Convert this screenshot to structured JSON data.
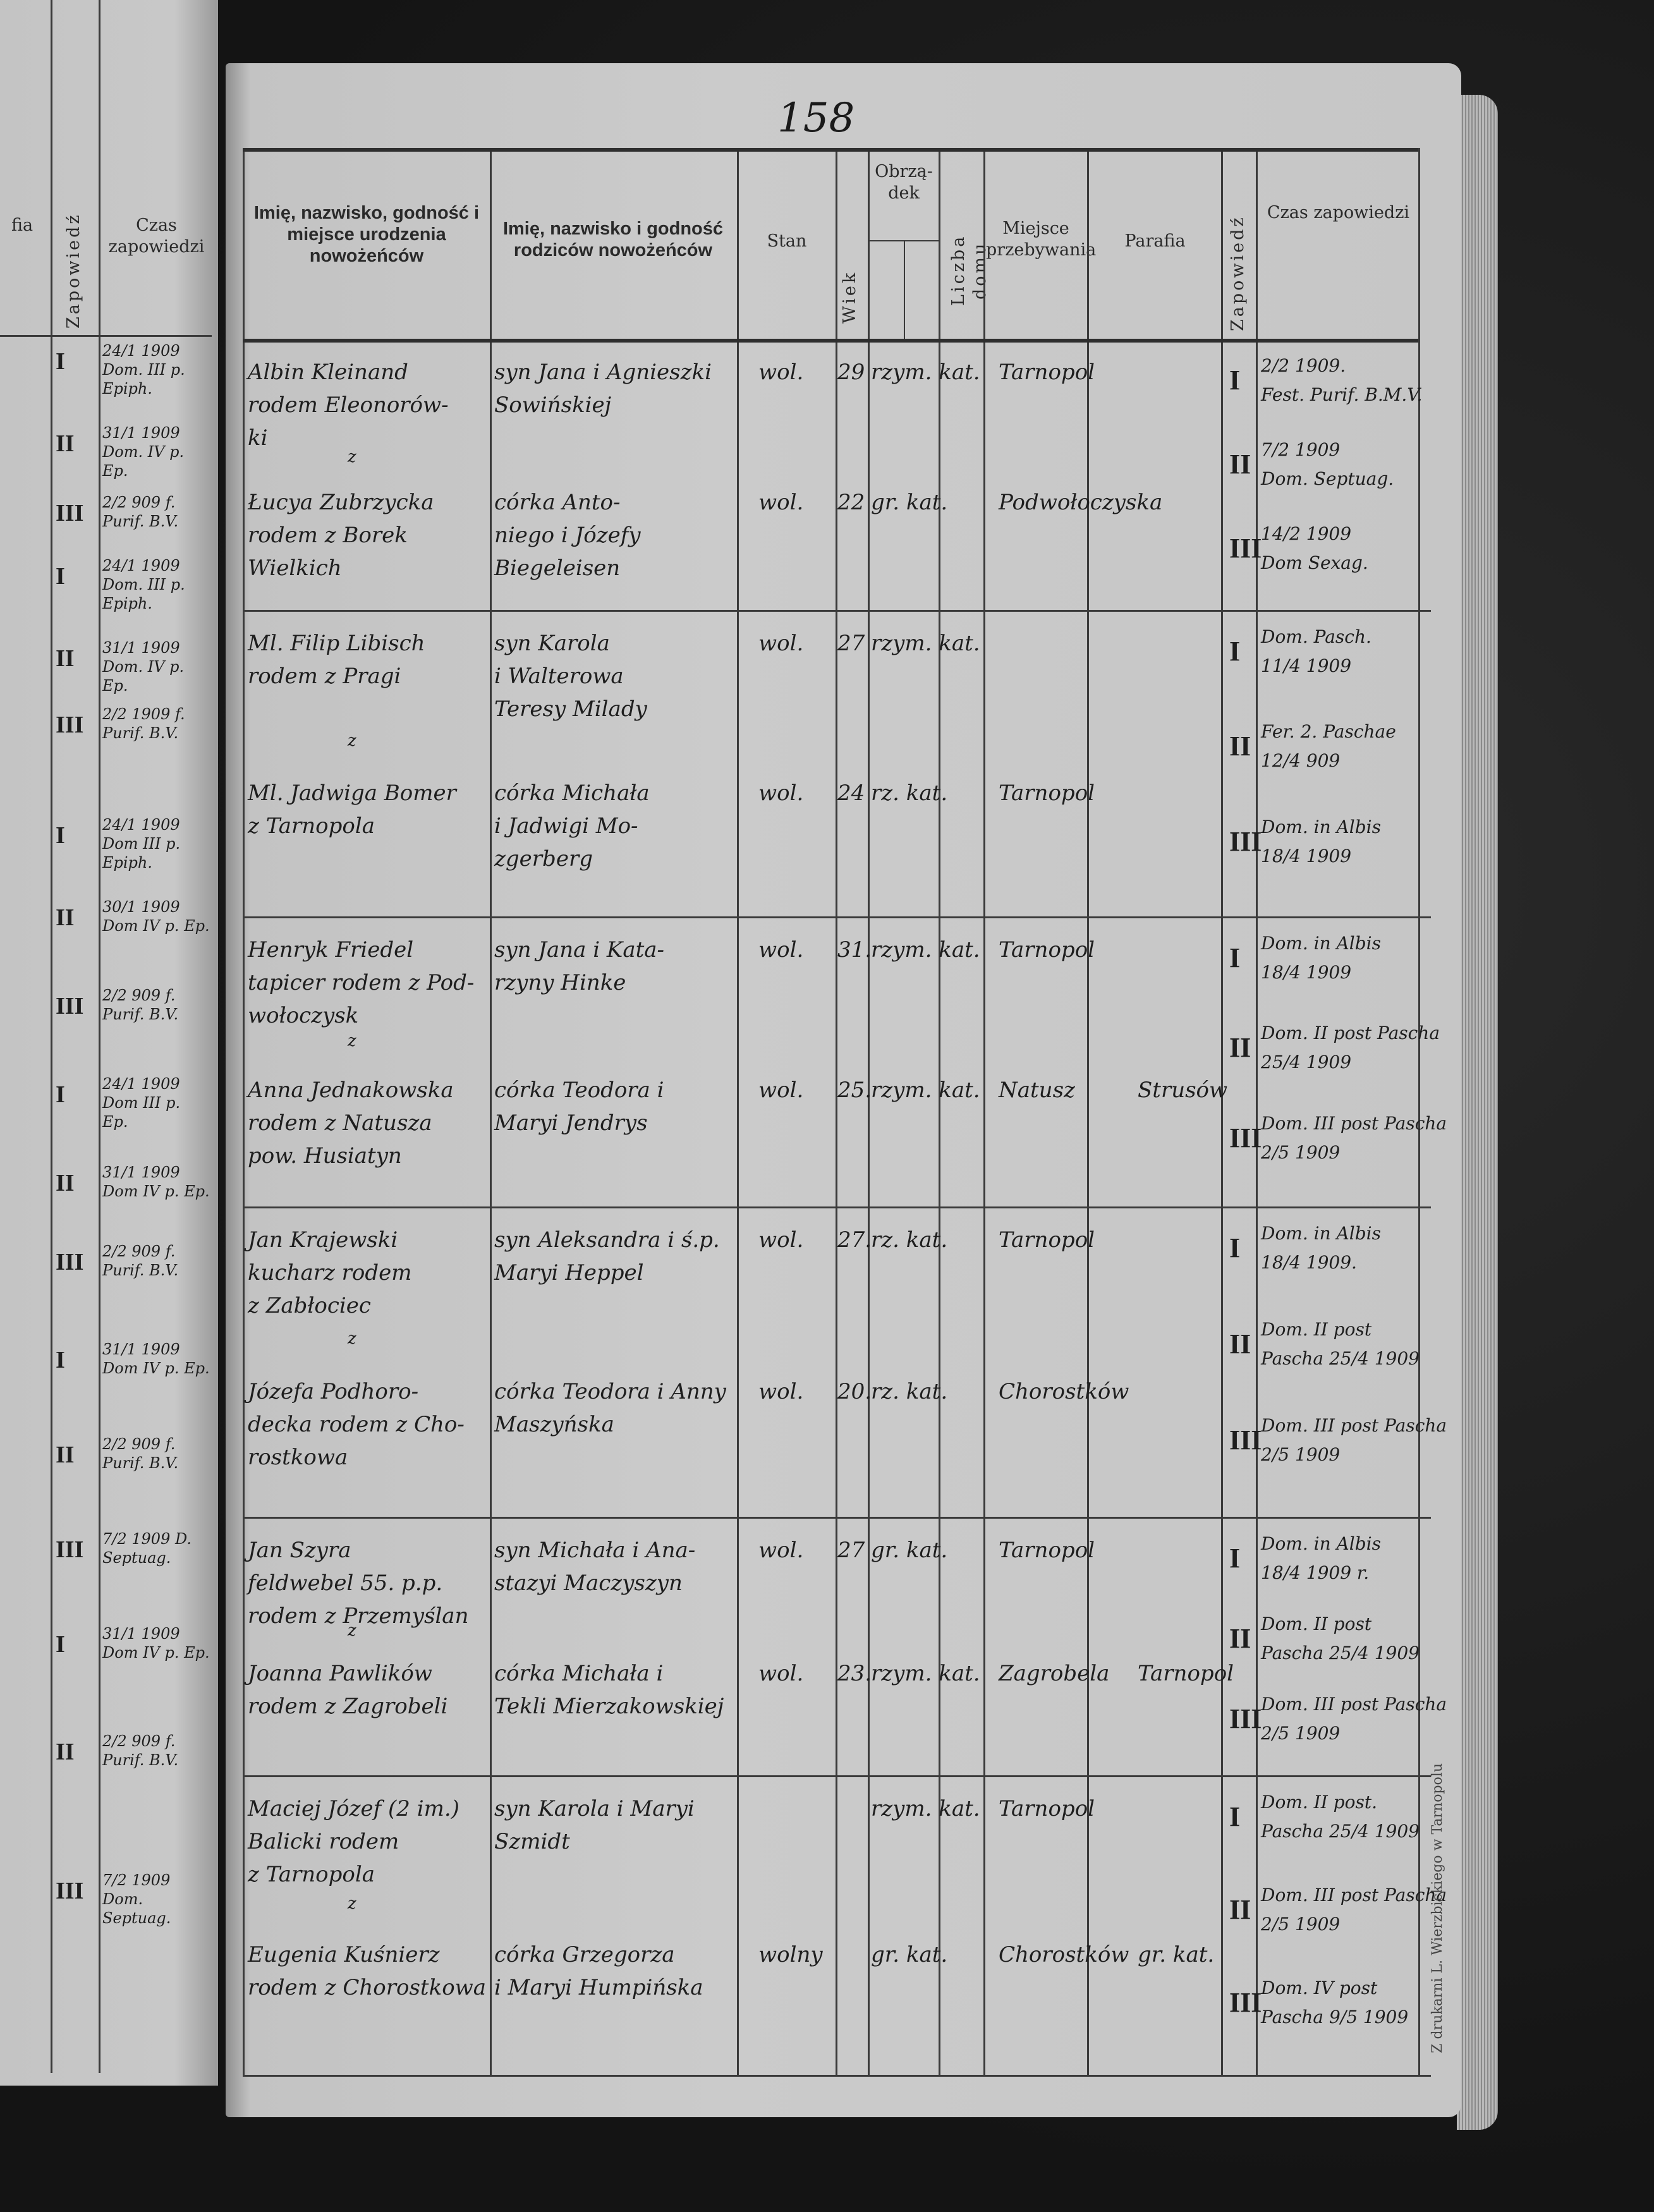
{
  "page_number": "158",
  "imprint": "Z drukarni L. Wierzbickiego w Tarnopolu",
  "left_page": {
    "headers": {
      "parafia_fragment": "fia",
      "zapowiedz": "Zapowiedź",
      "czas": "Czas zapowiedzi"
    },
    "banns": [
      {
        "num": "I",
        "text": "24/1 1909 Dom. III p. Epiph."
      },
      {
        "num": "II",
        "text": "31/1 1909 Dom. IV p. Ep."
      },
      {
        "num": "III",
        "text": "2/2 909 f. Purif. B.V."
      },
      {
        "num": "I",
        "text": "24/1 1909 Dom. III p. Epiph."
      },
      {
        "num": "II",
        "text": "31/1 1909 Dom. IV p. Ep."
      },
      {
        "num": "III",
        "text": "2/2 1909 f. Purif. B.V."
      },
      {
        "num": "I",
        "text": "24/1 1909 Dom III p. Epiph."
      },
      {
        "num": "II",
        "text": "30/1 1909 Dom IV p. Ep."
      },
      {
        "num": "III",
        "text": "2/2 909 f. Purif. B.V."
      },
      {
        "num": "I",
        "text": "24/1 1909 Dom III p. Ep."
      },
      {
        "num": "II",
        "text": "31/1 1909 Dom IV p. Ep."
      },
      {
        "num": "III",
        "text": "2/2 909 f. Purif. B.V."
      },
      {
        "num": "I",
        "text": "31/1 1909 Dom IV p. Ep."
      },
      {
        "num": "II",
        "text": "2/2 909 f. Purif. B.V."
      },
      {
        "num": "III",
        "text": "7/2 1909 D. Septuag."
      },
      {
        "num": "I",
        "text": "31/1 1909 Dom IV p. Ep."
      },
      {
        "num": "II",
        "text": "2/2 909 f. Purif. B.V."
      },
      {
        "num": "III",
        "text": "7/2 1909 Dom. Septuag."
      }
    ]
  },
  "headers": {
    "names": "Imię, nazwisko, godność i miejsce urodzenia nowożeńców",
    "parents": "Imię, nazwisko i godność rodziców nowożeńców",
    "stan": "Stan",
    "wiek": "Wiek",
    "obrzadek": "Obrzą-dek",
    "liczba_domu": "Liczba domu",
    "miejsce": "Miejsce przebywania",
    "parafia": "Parafia",
    "zapowiedz": "Zapowiedź",
    "czas": "Czas zapowiedzi"
  },
  "conjunction": "z",
  "records": [
    {
      "groom": {
        "name": [
          "Albin Kleinand",
          "rodem Eleonorów-",
          "ki"
        ],
        "parents": [
          "syn Jana i Agnieszki",
          "Sowińskiej"
        ],
        "stan": "wol.",
        "wiek": "29",
        "obrzadek": "rzym. kat.",
        "miejsce": "Tarnopol",
        "parafia": ""
      },
      "bride": {
        "name": [
          "Łucya Zubrzycka",
          "rodem z Borek",
          "Wielkich"
        ],
        "parents": [
          "córka Anto-",
          "niego i Józefy",
          "Biegeleisen"
        ],
        "stan": "wol.",
        "wiek": "22",
        "obrzadek": "gr. kat.",
        "miejsce": "Podwołoczyska",
        "parafia": ""
      },
      "banns": [
        {
          "num": "I",
          "text": [
            "2/2 1909.",
            "Fest. Purif. B.M.V."
          ]
        },
        {
          "num": "II",
          "text": [
            "7/2 1909",
            "Dom. Septuag."
          ]
        },
        {
          "num": "III",
          "text": [
            "14/2 1909",
            "Dom Sexag."
          ]
        }
      ]
    },
    {
      "groom": {
        "name": [
          "Ml. Filip Libisch",
          "rodem z Pragi"
        ],
        "parents": [
          "syn Karola",
          "i Walterowa",
          "Teresy Milady"
        ],
        "stan": "wol.",
        "wiek": "27",
        "obrzadek": "rzym. kat.",
        "miejsce": "",
        "parafia": ""
      },
      "bride": {
        "name": [
          "Ml. Jadwiga Bomer",
          "z Tarnopola"
        ],
        "parents": [
          "córka Michała",
          "i Jadwigi Mo-",
          "zgerberg"
        ],
        "stan": "wol.",
        "wiek": "24",
        "obrzadek": "rz. kat.",
        "miejsce": "Tarnopol",
        "parafia": ""
      },
      "banns": [
        {
          "num": "I",
          "text": [
            "Dom. Pasch.",
            "11/4 1909"
          ]
        },
        {
          "num": "II",
          "text": [
            "Fer. 2. Paschae",
            "12/4 909"
          ]
        },
        {
          "num": "III",
          "text": [
            "Dom. in Albis",
            "18/4 1909"
          ]
        }
      ]
    },
    {
      "groom": {
        "name": [
          "Henryk Friedel",
          "tapicer rodem z Pod-",
          "wołoczysk"
        ],
        "parents": [
          "syn Jana i Kata-",
          "rzyny Hinke"
        ],
        "stan": "wol.",
        "wiek": "31.",
        "obrzadek": "rzym. kat.",
        "miejsce": "Tarnopol",
        "parafia": ""
      },
      "bride": {
        "name": [
          "Anna Jednakowska",
          "rodem z Natusza",
          "pow. Husiatyn"
        ],
        "parents": [
          "córka Teodora i",
          "Maryi Jendrys"
        ],
        "stan": "wol.",
        "wiek": "25.",
        "obrzadek": "rzym. kat.",
        "miejsce": "Natusz",
        "parafia": "Strusów"
      },
      "banns": [
        {
          "num": "I",
          "text": [
            "Dom. in Albis",
            "18/4 1909"
          ]
        },
        {
          "num": "II",
          "text": [
            "Dom. II post Pascha",
            "25/4 1909"
          ]
        },
        {
          "num": "III",
          "text": [
            "Dom. III post Pascha",
            "2/5 1909"
          ]
        }
      ]
    },
    {
      "groom": {
        "name": [
          "Jan Krajewski",
          "kucharz rodem",
          "z Zabłociec"
        ],
        "parents": [
          "syn Aleksandra i ś.p.",
          "Maryi Heppel"
        ],
        "stan": "wol.",
        "wiek": "27.",
        "obrzadek": "rz. kat.",
        "miejsce": "Tarnopol",
        "parafia": ""
      },
      "bride": {
        "name": [
          "Józefa Podhoro-",
          "decka rodem z Cho-",
          "rostkowa"
        ],
        "parents": [
          "córka Teodora i Anny",
          "Maszyńska"
        ],
        "stan": "wol.",
        "wiek": "20.",
        "obrzadek": "rz. kat.",
        "miejsce": "Chorostków",
        "parafia": ""
      },
      "banns": [
        {
          "num": "I",
          "text": [
            "Dom. in Albis",
            "18/4 1909."
          ]
        },
        {
          "num": "II",
          "text": [
            "Dom. II post",
            "Pascha 25/4 1909"
          ]
        },
        {
          "num": "III",
          "text": [
            "Dom. III post Pascha",
            "2/5 1909"
          ]
        }
      ]
    },
    {
      "groom": {
        "name": [
          "Jan Szyra",
          "feldwebel 55. p.p.",
          "rodem z Przemyślan"
        ],
        "parents": [
          "syn Michała i Ana-",
          "stazyi Maczyszyn"
        ],
        "stan": "wol.",
        "wiek": "27",
        "obrzadek": "gr. kat.",
        "miejsce": "Tarnopol",
        "parafia": ""
      },
      "bride": {
        "name": [
          "Joanna Pawlików",
          "rodem z Zagrobeli"
        ],
        "parents": [
          "córka Michała i",
          "Tekli Mierzakowskiej"
        ],
        "stan": "wol.",
        "wiek": "23.",
        "obrzadek": "rzym. kat.",
        "miejsce": "Zagrobela",
        "parafia": "Tarnopol"
      },
      "banns": [
        {
          "num": "I",
          "text": [
            "Dom. in Albis",
            "18/4 1909 r."
          ]
        },
        {
          "num": "II",
          "text": [
            "Dom. II post",
            "Pascha 25/4 1909"
          ]
        },
        {
          "num": "III",
          "text": [
            "Dom. III post Pascha",
            "2/5 1909"
          ]
        }
      ]
    },
    {
      "groom": {
        "name": [
          "Maciej Józef (2 im.)",
          "Balicki rodem",
          "z Tarnopola"
        ],
        "parents": [
          "syn Karola i Maryi",
          "Szmidt"
        ],
        "stan": "",
        "wiek": "",
        "obrzadek": "rzym. kat.",
        "miejsce": "Tarnopol",
        "parafia": ""
      },
      "bride": {
        "name": [
          "Eugenia Kuśnierz",
          "rodem z Chorostkowa"
        ],
        "parents": [
          "córka Grzegorza",
          "i Maryi Humpińska"
        ],
        "stan": "wolny",
        "wiek": "",
        "obrzadek": "gr. kat.",
        "miejsce": "Chorostków",
        "parafia": "gr. kat."
      },
      "banns": [
        {
          "num": "I",
          "text": [
            "Dom. II post.",
            "Pascha 25/4 1909"
          ]
        },
        {
          "num": "II",
          "text": [
            "Dom. III post Pascha",
            "2/5 1909"
          ]
        },
        {
          "num": "III",
          "text": [
            "Dom. IV post",
            "Pascha 9/5 1909"
          ]
        }
      ]
    }
  ]
}
